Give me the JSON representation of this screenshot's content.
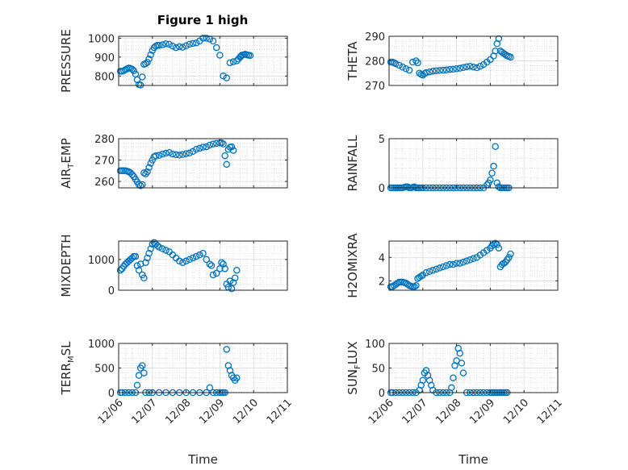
{
  "figure_title": "Figure 1 high",
  "colors": {
    "marker": "#0072BD",
    "axis": "#262626",
    "grid": "#c8c8c8"
  },
  "chart_data": [
    {
      "type": "scatter",
      "ylabel": "PRESSURE",
      "ylabel_main": "PRESSURE",
      "ylim": [
        750,
        1010
      ],
      "yticks": [
        800,
        900,
        1000
      ],
      "ytick_labels": [
        "800",
        "900",
        "1000"
      ],
      "xlim": [
        0,
        5
      ],
      "xticks": [
        0,
        1,
        2,
        3,
        4,
        5
      ],
      "grid": true,
      "x": [
        0.05,
        0.1,
        0.15,
        0.2,
        0.25,
        0.3,
        0.35,
        0.4,
        0.45,
        0.5,
        0.55,
        0.6,
        0.65,
        0.7,
        0.75,
        0.8,
        0.85,
        0.9,
        0.95,
        1.0,
        1.05,
        1.1,
        1.15,
        1.2,
        1.3,
        1.4,
        1.5,
        1.6,
        1.7,
        1.8,
        1.9,
        2.0,
        2.1,
        2.2,
        2.3,
        2.4,
        2.5,
        2.6,
        2.7,
        2.8,
        2.9,
        3.0,
        3.1,
        3.2,
        3.3,
        3.4,
        3.5,
        3.55,
        3.6,
        3.62,
        3.65,
        3.7,
        3.75,
        3.8,
        3.85,
        3.9
      ],
      "y": [
        825,
        825,
        828,
        833,
        838,
        842,
        840,
        836,
        828,
        810,
        780,
        755,
        752,
        795,
        862,
        865,
        872,
        890,
        912,
        935,
        950,
        958,
        962,
        962,
        965,
        970,
        968,
        958,
        950,
        955,
        952,
        960,
        968,
        972,
        975,
        985,
        1000,
        1000,
        995,
        985,
        950,
        910,
        800,
        790,
        870,
        875,
        880,
        890,
        900,
        905,
        910,
        912,
        915,
        912,
        910,
        908
      ]
    },
    {
      "type": "scatter",
      "ylabel": "THETA",
      "ylabel_main": "THETA",
      "ylim": [
        270,
        290
      ],
      "yticks": [
        270,
        280,
        290
      ],
      "ytick_labels": [
        "270",
        "280",
        "290"
      ],
      "xlim": [
        0,
        5
      ],
      "xticks": [
        0,
        1,
        2,
        3,
        4,
        5
      ],
      "grid": true,
      "x": [
        0.05,
        0.1,
        0.15,
        0.2,
        0.3,
        0.4,
        0.5,
        0.6,
        0.7,
        0.8,
        0.85,
        0.9,
        0.95,
        1.0,
        1.05,
        1.1,
        1.2,
        1.3,
        1.4,
        1.5,
        1.6,
        1.7,
        1.8,
        1.9,
        2.0,
        2.1,
        2.2,
        2.3,
        2.4,
        2.5,
        2.6,
        2.7,
        2.8,
        2.9,
        3.0,
        3.1,
        3.15,
        3.2,
        3.25,
        3.3,
        3.35,
        3.4,
        3.45,
        3.5,
        3.55,
        3.6
      ],
      "y": [
        279.5,
        279.5,
        279.2,
        278.8,
        278.2,
        277.5,
        276.8,
        276.2,
        279.5,
        280,
        279.2,
        275,
        274.5,
        274.2,
        274.8,
        275.2,
        275.5,
        275.8,
        276,
        276.1,
        276.2,
        276.3,
        276.5,
        276.6,
        276.8,
        277,
        277.3,
        277.6,
        277.8,
        277.5,
        277.2,
        277.8,
        278.5,
        279.5,
        280.5,
        282,
        284,
        287,
        289,
        284,
        283.5,
        283,
        282.5,
        282,
        281.8,
        281.5
      ]
    },
    {
      "type": "scatter",
      "ylabel": "AIR_TEMP",
      "ylabel_main": "AIR",
      "ylabel_sub": "T",
      "ylabel_rest": "EMP",
      "ylim": [
        257,
        280
      ],
      "yticks": [
        260,
        270,
        280
      ],
      "ytick_labels": [
        "260",
        "270",
        "280"
      ],
      "xlim": [
        0,
        5
      ],
      "xticks": [
        0,
        1,
        2,
        3,
        4,
        5
      ],
      "grid": true,
      "x": [
        0.05,
        0.1,
        0.15,
        0.2,
        0.25,
        0.3,
        0.35,
        0.4,
        0.45,
        0.5,
        0.55,
        0.6,
        0.65,
        0.7,
        0.75,
        0.8,
        0.85,
        0.9,
        0.95,
        1.0,
        1.05,
        1.1,
        1.2,
        1.3,
        1.4,
        1.5,
        1.6,
        1.7,
        1.8,
        1.9,
        2.0,
        2.1,
        2.2,
        2.3,
        2.4,
        2.5,
        2.6,
        2.7,
        2.8,
        2.9,
        3.0,
        3.05,
        3.1,
        3.15,
        3.2,
        3.25,
        3.3,
        3.35,
        3.4
      ],
      "y": [
        265,
        265,
        265,
        265,
        264.8,
        264.5,
        264,
        263.2,
        262.3,
        261,
        259.8,
        258.5,
        258,
        258.5,
        264,
        263.5,
        264.5,
        266.5,
        268.5,
        270,
        271.5,
        272,
        272.2,
        272.8,
        273.2,
        273.5,
        272.8,
        272.5,
        272.3,
        272.6,
        273,
        273.3,
        274,
        275,
        275.5,
        276,
        276.2,
        277,
        277.5,
        277.8,
        278,
        278,
        277.5,
        272,
        268,
        275,
        276,
        276.2,
        274.5
      ]
    },
    {
      "type": "scatter",
      "ylabel": "RAINFALL",
      "ylabel_main": "RAINFALL",
      "ylim": [
        0,
        5
      ],
      "yticks": [
        0,
        5
      ],
      "ytick_labels": [
        "0",
        "5"
      ],
      "xlim": [
        0,
        5
      ],
      "xticks": [
        0,
        1,
        2,
        3,
        4,
        5
      ],
      "grid": true,
      "x": [
        0.05,
        0.1,
        0.15,
        0.2,
        0.25,
        0.3,
        0.35,
        0.4,
        0.45,
        0.5,
        0.55,
        0.6,
        0.65,
        0.7,
        0.75,
        0.8,
        0.85,
        0.9,
        0.95,
        1.0,
        1.1,
        1.2,
        1.3,
        1.4,
        1.5,
        1.6,
        1.7,
        1.8,
        1.9,
        2.0,
        2.1,
        2.2,
        2.3,
        2.4,
        2.5,
        2.6,
        2.7,
        2.8,
        2.9,
        2.95,
        3.0,
        3.05,
        3.1,
        3.15,
        3.2,
        3.25,
        3.3,
        3.35,
        3.4,
        3.45,
        3.5,
        3.55
      ],
      "y": [
        0,
        0,
        0,
        0,
        0,
        0,
        0,
        0,
        0.05,
        0.1,
        0.1,
        0,
        0,
        0.05,
        0.1,
        0,
        0,
        0,
        0,
        0,
        0,
        0,
        0,
        0,
        0,
        0,
        0,
        0,
        0,
        0,
        0,
        0,
        0,
        0,
        0,
        0,
        0,
        0,
        0.3,
        0.5,
        0.8,
        1.5,
        2.2,
        4.2,
        0.5,
        0.1,
        0,
        0,
        0,
        0,
        0,
        0
      ]
    },
    {
      "type": "scatter",
      "ylabel": "MIXDEPTH",
      "ylabel_main": "MIXDEPTH",
      "ylim": [
        0,
        1600
      ],
      "yticks": [
        0,
        1000
      ],
      "ytick_labels": [
        "0",
        "1000"
      ],
      "xlim": [
        0,
        5
      ],
      "xticks": [
        0,
        1,
        2,
        3,
        4,
        5
      ],
      "grid": true,
      "x": [
        0.05,
        0.1,
        0.15,
        0.2,
        0.25,
        0.3,
        0.35,
        0.4,
        0.45,
        0.5,
        0.55,
        0.6,
        0.65,
        0.7,
        0.75,
        0.8,
        0.85,
        0.9,
        0.95,
        1.0,
        1.05,
        1.1,
        1.15,
        1.2,
        1.3,
        1.4,
        1.5,
        1.6,
        1.7,
        1.8,
        1.9,
        2.0,
        2.1,
        2.2,
        2.3,
        2.4,
        2.5,
        2.6,
        2.7,
        2.75,
        2.8,
        2.9,
        3.0,
        3.05,
        3.1,
        3.15,
        3.2,
        3.25,
        3.3,
        3.35,
        3.4,
        3.45,
        3.5
      ],
      "y": [
        650,
        700,
        780,
        850,
        900,
        950,
        1000,
        1050,
        1100,
        1100,
        800,
        650,
        850,
        500,
        400,
        900,
        1050,
        1200,
        1350,
        1500,
        1550,
        1500,
        1450,
        1400,
        1350,
        1300,
        1250,
        1150,
        1050,
        950,
        900,
        950,
        1000,
        1050,
        1100,
        1150,
        1200,
        1000,
        850,
        800,
        500,
        550,
        700,
        900,
        850,
        700,
        200,
        100,
        300,
        50,
        250,
        400,
        650
      ]
    },
    {
      "type": "scatter",
      "ylabel": "H2OMIXRA",
      "ylabel_main": "H2OMIXRA",
      "ylim": [
        1.2,
        5.4
      ],
      "yticks": [
        2,
        4
      ],
      "ytick_labels": [
        "2",
        "4"
      ],
      "xlim": [
        0,
        5
      ],
      "xticks": [
        0,
        1,
        2,
        3,
        4,
        5
      ],
      "grid": true,
      "x": [
        0.05,
        0.1,
        0.15,
        0.2,
        0.25,
        0.3,
        0.35,
        0.4,
        0.45,
        0.5,
        0.55,
        0.6,
        0.65,
        0.7,
        0.75,
        0.8,
        0.85,
        0.9,
        0.95,
        1.0,
        1.1,
        1.2,
        1.3,
        1.4,
        1.5,
        1.6,
        1.7,
        1.8,
        1.9,
        2.0,
        2.1,
        2.2,
        2.3,
        2.4,
        2.5,
        2.6,
        2.7,
        2.8,
        2.9,
        3.0,
        3.05,
        3.1,
        3.15,
        3.2,
        3.25,
        3.3,
        3.35,
        3.4,
        3.45,
        3.5,
        3.55,
        3.6
      ],
      "y": [
        1.5,
        1.5,
        1.6,
        1.7,
        1.8,
        1.9,
        1.9,
        1.9,
        1.85,
        1.8,
        1.7,
        1.6,
        1.55,
        1.5,
        1.5,
        1.6,
        2.2,
        2.3,
        2.4,
        2.5,
        2.7,
        2.8,
        2.9,
        3.0,
        3.1,
        3.2,
        3.3,
        3.4,
        3.4,
        3.5,
        3.5,
        3.6,
        3.7,
        3.8,
        3.9,
        4.0,
        4.2,
        4.4,
        4.6,
        4.8,
        5.0,
        5.1,
        5.2,
        5.1,
        4.8,
        3.2,
        3.4,
        3.5,
        3.6,
        3.8,
        4.0,
        4.3
      ]
    },
    {
      "type": "scatter",
      "ylabel": "TERR_MSL",
      "ylabel_main": "TERR",
      "ylabel_sub": "M",
      "ylabel_rest": "SL",
      "ylim": [
        0,
        1000
      ],
      "yticks": [
        0,
        500,
        1000
      ],
      "ytick_labels": [
        "0",
        "500",
        "1000"
      ],
      "xlim": [
        0,
        5
      ],
      "xticks": [
        0,
        1,
        2,
        3,
        4,
        5
      ],
      "xtick_labels": [
        "12/06",
        "12/07",
        "12/08",
        "12/09",
        "12/10",
        "12/11"
      ],
      "xlabel": "Time",
      "grid": true,
      "x": [
        0.05,
        0.1,
        0.2,
        0.3,
        0.4,
        0.5,
        0.55,
        0.6,
        0.65,
        0.7,
        0.75,
        0.8,
        0.9,
        1.0,
        1.2,
        1.4,
        1.6,
        1.8,
        2.0,
        2.2,
        2.4,
        2.6,
        2.7,
        2.8,
        2.9,
        3.0,
        3.05,
        3.1,
        3.15,
        3.2,
        3.25,
        3.3,
        3.35,
        3.4,
        3.45,
        3.5
      ],
      "y": [
        0,
        0,
        0,
        0,
        0,
        0,
        150,
        350,
        500,
        550,
        400,
        0,
        0,
        0,
        0,
        0,
        0,
        0,
        0,
        0,
        0,
        0,
        100,
        0,
        0,
        0,
        0,
        0,
        0,
        880,
        550,
        450,
        350,
        300,
        250,
        300
      ]
    },
    {
      "type": "scatter",
      "ylabel": "SUN_FLUX",
      "ylabel_main": "SUN",
      "ylabel_sub": "F",
      "ylabel_rest": "LUX",
      "ylim": [
        0,
        100
      ],
      "yticks": [
        0,
        50,
        100
      ],
      "ytick_labels": [
        "0",
        "50",
        "100"
      ],
      "xlim": [
        0,
        5
      ],
      "xticks": [
        0,
        1,
        2,
        3,
        4,
        5
      ],
      "xtick_labels": [
        "12/06",
        "12/07",
        "12/08",
        "12/09",
        "12/10",
        "12/11"
      ],
      "xlabel": "Time",
      "grid": true,
      "x": [
        0.05,
        0.1,
        0.2,
        0.3,
        0.4,
        0.5,
        0.6,
        0.7,
        0.8,
        0.9,
        0.95,
        1.0,
        1.05,
        1.1,
        1.15,
        1.2,
        1.25,
        1.3,
        1.4,
        1.5,
        1.6,
        1.7,
        1.8,
        1.85,
        1.9,
        1.95,
        2.0,
        2.05,
        2.1,
        2.15,
        2.2,
        2.3,
        2.4,
        2.5,
        2.6,
        2.7,
        2.8,
        2.9,
        3.0,
        3.05,
        3.1,
        3.15,
        3.2,
        3.25,
        3.3,
        3.35,
        3.4,
        3.45,
        3.5
      ],
      "y": [
        0,
        0,
        0,
        0,
        0,
        0,
        0,
        0,
        0,
        5,
        15,
        25,
        40,
        45,
        35,
        25,
        15,
        5,
        0,
        0,
        0,
        0,
        0,
        10,
        30,
        55,
        65,
        90,
        80,
        60,
        40,
        0,
        0,
        0,
        0,
        0,
        0,
        0,
        0,
        0,
        0,
        0,
        0,
        0,
        0,
        0,
        0,
        0,
        0
      ]
    }
  ]
}
